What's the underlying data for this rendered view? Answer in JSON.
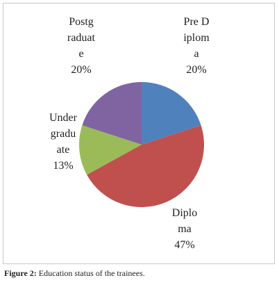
{
  "chart_data": {
    "type": "pie",
    "categories": [
      "Pre Diploma",
      "Diploma",
      "Undergraduate",
      "Postgraduate"
    ],
    "values": [
      20,
      47,
      13,
      20
    ],
    "value_labels": [
      "20%",
      "47%",
      "13%",
      "20%"
    ],
    "colors": [
      "#4f81bd",
      "#c0504d",
      "#9bbb59",
      "#8064a2"
    ]
  },
  "caption": {
    "label": "Figure 2:",
    "text": "Education status of the trainees."
  }
}
